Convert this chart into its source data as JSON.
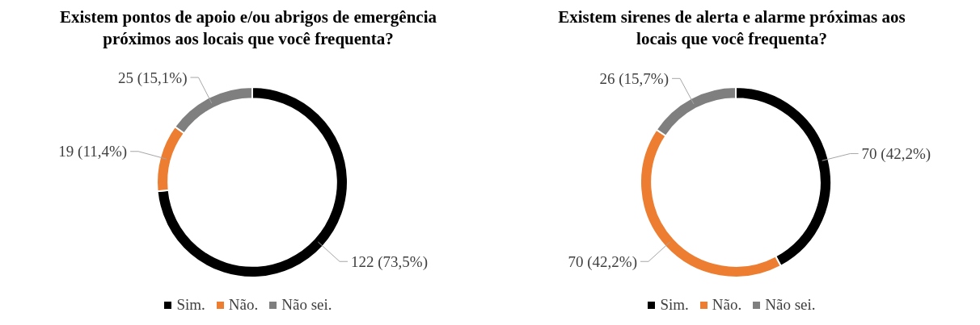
{
  "chart_data": [
    {
      "type": "donut",
      "title": "Existem pontos de apoio e/ou abrigos de emergência próximos aos locais que você frequenta?",
      "categories": [
        "Sim.",
        "Não.",
        "Não sei."
      ],
      "values": [
        122,
        19,
        25
      ],
      "colors": [
        "#000000",
        "#ed7d31",
        "#7f7f7f"
      ],
      "value_labels": [
        "122 (73,5%)",
        "19 (11,4%)",
        "25 (15,1%)"
      ],
      "legend": "bottom"
    },
    {
      "type": "donut",
      "title": "Existem sirenes de alerta e alarme próximas aos locais que você frequenta?",
      "categories": [
        "Sim.",
        "Não.",
        "Não sei."
      ],
      "values": [
        70,
        70,
        26
      ],
      "colors": [
        "#000000",
        "#ed7d31",
        "#7f7f7f"
      ],
      "value_labels": [
        "70 (42,2%)",
        "70 (42,2%)",
        "26 (15,7%)"
      ],
      "legend": "bottom"
    }
  ]
}
